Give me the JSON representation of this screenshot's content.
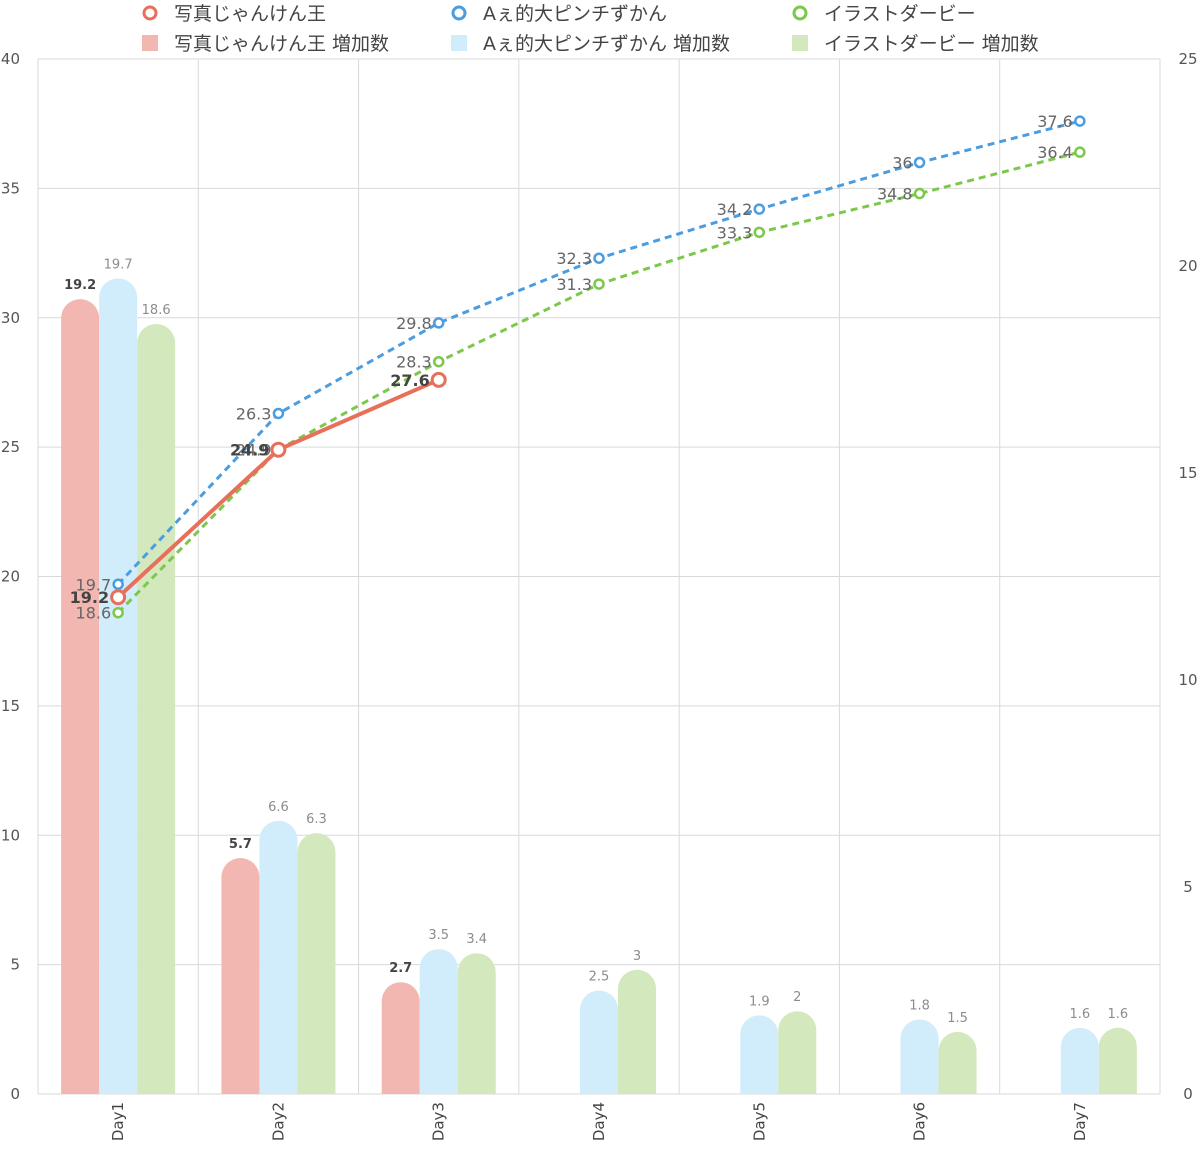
{
  "chart_data": {
    "type": "bar+line",
    "categories": [
      "Day1",
      "Day2",
      "Day3",
      "Day4",
      "Day5",
      "Day6",
      "Day7"
    ],
    "left_axis": {
      "min": 0,
      "max": 40,
      "step": 5,
      "ticks": [
        "0",
        "5",
        "10",
        "15",
        "20",
        "25",
        "30",
        "35",
        "40"
      ]
    },
    "right_axis": {
      "min": 0,
      "max": 25,
      "step": 5,
      "ticks": [
        "0",
        "5",
        "10",
        "15",
        "20",
        "25"
      ]
    },
    "grid": true,
    "legend_position": "top",
    "line_series": [
      {
        "name": "写真じゃんけん王",
        "color": "#e8705a",
        "style": "solid",
        "values": [
          19.2,
          24.9,
          27.6,
          null,
          null,
          null,
          null
        ],
        "labels": [
          "19.2",
          "24.9",
          "27.6",
          "",
          "",
          "",
          ""
        ]
      },
      {
        "name": "Aぇ的大ピンチずかん",
        "color": "#4a9de0",
        "style": "dashed",
        "values": [
          19.7,
          26.3,
          29.8,
          32.3,
          34.2,
          36,
          37.6
        ],
        "labels": [
          "19.7",
          "26.3",
          "29.8",
          "32.3",
          "34.2",
          "36",
          "37.6"
        ]
      },
      {
        "name": "イラストダービー",
        "color": "#7cc84a",
        "style": "dashed",
        "values": [
          18.6,
          24.9,
          28.3,
          31.3,
          33.3,
          34.8,
          36.4
        ],
        "labels": [
          "18.6",
          "24.9",
          "28.3",
          "31.3",
          "33.3",
          "34.8",
          "36.4"
        ]
      }
    ],
    "bar_series": [
      {
        "name": "写真じゃんけん王 増加数",
        "color": "#f2b7b0",
        "values": [
          19.2,
          5.7,
          2.7,
          null,
          null,
          null,
          null
        ],
        "labels": [
          "19.2",
          "5.7",
          "2.7",
          "",
          "",
          "",
          ""
        ]
      },
      {
        "name": "Aぇ的大ピンチずかん 増加数",
        "color": "#d1ecfa",
        "values": [
          19.7,
          6.6,
          3.5,
          2.5,
          1.9,
          1.8,
          1.6
        ],
        "labels": [
          "19.7",
          "6.6",
          "3.5",
          "2.5",
          "1.9",
          "1.8",
          "1.6"
        ]
      },
      {
        "name": "イラストダービー 増加数",
        "color": "#d3e8bd",
        "values": [
          18.6,
          6.3,
          3.4,
          3,
          2,
          1.5,
          1.6
        ],
        "labels": [
          "18.6",
          "6.3",
          "3.4",
          "3",
          "2",
          "1.5",
          "1.6"
        ]
      }
    ]
  }
}
